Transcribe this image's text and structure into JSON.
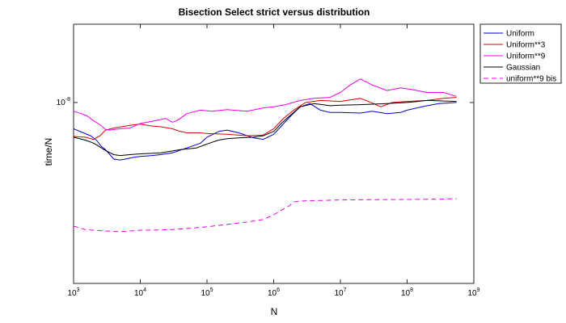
{
  "chart_data": {
    "type": "line",
    "title": "Bisection Select strict versus distribution",
    "xlabel": "N",
    "ylabel": "time/N",
    "xscale": "log",
    "yscale": "log",
    "xlim": [
      1000,
      1000000000
    ],
    "ylim": [
      1.8e-09,
      2.1e-08
    ],
    "grid": false,
    "legend_position": "outside-top-right",
    "x_ticks": [
      {
        "base": "10",
        "exp": "3",
        "value": 1000
      },
      {
        "base": "10",
        "exp": "4",
        "value": 10000
      },
      {
        "base": "10",
        "exp": "5",
        "value": 100000
      },
      {
        "base": "10",
        "exp": "6",
        "value": 1000000
      },
      {
        "base": "10",
        "exp": "7",
        "value": 10000000
      },
      {
        "base": "10",
        "exp": "8",
        "value": 100000000
      },
      {
        "base": "10",
        "exp": "9",
        "value": 1000000000
      }
    ],
    "y_ticks": [
      {
        "base": "10",
        "exp": "-8",
        "value": 1e-08
      }
    ],
    "series": [
      {
        "name": "Uniform",
        "color": "#0000cc",
        "dash": "solid",
        "points": [
          [
            1000,
            7.8e-09
          ],
          [
            1400,
            7.5e-09
          ],
          [
            1800,
            7.3e-09
          ],
          [
            2200,
            7e-09
          ],
          [
            2600,
            6.6e-09
          ],
          [
            3000,
            6.4e-09
          ],
          [
            3500,
            6.1e-09
          ],
          [
            4000,
            5.85e-09
          ],
          [
            5000,
            5.8e-09
          ],
          [
            6000,
            5.85e-09
          ],
          [
            8000,
            5.95e-09
          ],
          [
            10000,
            6e-09
          ],
          [
            15000,
            6.05e-09
          ],
          [
            20000,
            6.1e-09
          ],
          [
            30000,
            6.2e-09
          ],
          [
            50000,
            6.5e-09
          ],
          [
            80000,
            6.8e-09
          ],
          [
            100000,
            7.2e-09
          ],
          [
            150000,
            7.6e-09
          ],
          [
            200000,
            7.7e-09
          ],
          [
            300000,
            7.5e-09
          ],
          [
            500000,
            7.15e-09
          ],
          [
            700000,
            7.05e-09
          ],
          [
            1000000,
            7.4e-09
          ],
          [
            1300000,
            8e-09
          ],
          [
            1800000,
            8.8e-09
          ],
          [
            2500000,
            9.6e-09
          ],
          [
            3500000,
            9.9e-09
          ],
          [
            5000000,
            9.3e-09
          ],
          [
            7000000,
            9.1e-09
          ],
          [
            10000000,
            9.1e-09
          ],
          [
            20000000,
            9.05e-09
          ],
          [
            30000000,
            9.2e-09
          ],
          [
            50000000,
            9e-09
          ],
          [
            80000000,
            9.1e-09
          ],
          [
            100000000,
            9.3e-09
          ],
          [
            200000000,
            9.7e-09
          ],
          [
            300000000,
            9.9e-09
          ],
          [
            550000000,
            1e-08
          ]
        ]
      },
      {
        "name": "Uniform**3",
        "color": "#dd0000",
        "dash": "solid",
        "points": [
          [
            1000,
            7.25e-09
          ],
          [
            1500,
            7.2e-09
          ],
          [
            2000,
            7.05e-09
          ],
          [
            2500,
            7.3e-09
          ],
          [
            3000,
            7.7e-09
          ],
          [
            4000,
            7.85e-09
          ],
          [
            6000,
            8e-09
          ],
          [
            8000,
            8.1e-09
          ],
          [
            10000,
            8.15e-09
          ],
          [
            15000,
            8e-09
          ],
          [
            20000,
            7.95e-09
          ],
          [
            30000,
            7.8e-09
          ],
          [
            40000,
            7.6e-09
          ],
          [
            50000,
            7.5e-09
          ],
          [
            80000,
            7.5e-09
          ],
          [
            100000,
            7.45e-09
          ],
          [
            200000,
            7.4e-09
          ],
          [
            400000,
            7.3e-09
          ],
          [
            700000,
            7.35e-09
          ],
          [
            1000000,
            7.8e-09
          ],
          [
            1400000,
            8.6e-09
          ],
          [
            2000000,
            9.3e-09
          ],
          [
            3000000,
            1e-08
          ],
          [
            5000000,
            1.02e-08
          ],
          [
            10000000,
            1.01e-08
          ],
          [
            20000000,
            1.04e-08
          ],
          [
            30000000,
            9.95e-09
          ],
          [
            40000000,
            9.6e-09
          ],
          [
            60000000,
            1e-08
          ],
          [
            100000000,
            1.01e-08
          ],
          [
            200000000,
            1.02e-08
          ],
          [
            350000000,
            1.04e-08
          ],
          [
            550000000,
            1.05e-08
          ]
        ]
      },
      {
        "name": "Uniform**9",
        "color": "#ee00ee",
        "dash": "solid",
        "points": [
          [
            1000,
            9.2e-09
          ],
          [
            1300,
            9e-09
          ],
          [
            1600,
            8.8e-09
          ],
          [
            2000,
            8.4e-09
          ],
          [
            2500,
            8.1e-09
          ],
          [
            3000,
            7.75e-09
          ],
          [
            3500,
            7.7e-09
          ],
          [
            5000,
            7.8e-09
          ],
          [
            7000,
            7.85e-09
          ],
          [
            10000,
            8.2e-09
          ],
          [
            13000,
            8.3e-09
          ],
          [
            16000,
            8.4e-09
          ],
          [
            20000,
            8.5e-09
          ],
          [
            24000,
            8.6e-09
          ],
          [
            30000,
            8.3e-09
          ],
          [
            35000,
            8.4e-09
          ],
          [
            50000,
            9e-09
          ],
          [
            80000,
            9.3e-09
          ],
          [
            120000,
            9.2e-09
          ],
          [
            200000,
            9.35e-09
          ],
          [
            400000,
            9.2e-09
          ],
          [
            700000,
            9.5e-09
          ],
          [
            1000000,
            9.6e-09
          ],
          [
            1500000,
            9.8e-09
          ],
          [
            2500000,
            1.02e-08
          ],
          [
            4000000,
            1.04e-08
          ],
          [
            7000000,
            1.05e-08
          ],
          [
            10000000,
            1.1e-08
          ],
          [
            14000000,
            1.18e-08
          ],
          [
            20000000,
            1.25e-08
          ],
          [
            30000000,
            1.18e-08
          ],
          [
            50000000,
            1.12e-08
          ],
          [
            80000000,
            1.15e-08
          ],
          [
            120000000,
            1.13e-08
          ],
          [
            200000000,
            1.1e-08
          ],
          [
            350000000,
            1.1e-08
          ],
          [
            550000000,
            1.06e-08
          ]
        ]
      },
      {
        "name": "Gaussian",
        "color": "#000000",
        "dash": "solid",
        "points": [
          [
            1000,
            7.2e-09
          ],
          [
            1500,
            7e-09
          ],
          [
            2000,
            6.8e-09
          ],
          [
            2500,
            6.55e-09
          ],
          [
            3000,
            6.35e-09
          ],
          [
            4000,
            6.1e-09
          ],
          [
            5000,
            6.05e-09
          ],
          [
            7000,
            6.1e-09
          ],
          [
            10000,
            6.15e-09
          ],
          [
            20000,
            6.2e-09
          ],
          [
            40000,
            6.4e-09
          ],
          [
            70000,
            6.5e-09
          ],
          [
            100000,
            6.75e-09
          ],
          [
            150000,
            7e-09
          ],
          [
            200000,
            7.1e-09
          ],
          [
            300000,
            7.15e-09
          ],
          [
            500000,
            7.2e-09
          ],
          [
            700000,
            7.3e-09
          ],
          [
            1000000,
            7.6e-09
          ],
          [
            1300000,
            8.2e-09
          ],
          [
            1800000,
            8.9e-09
          ],
          [
            2500000,
            9.6e-09
          ],
          [
            4000000,
            9.9e-09
          ],
          [
            7000000,
            9.7e-09
          ],
          [
            10000000,
            9.75e-09
          ],
          [
            20000000,
            9.8e-09
          ],
          [
            50000000,
            9.9e-09
          ],
          [
            100000000,
            1e-08
          ],
          [
            200000000,
            1.02e-08
          ],
          [
            550000000,
            1.01e-08
          ]
        ]
      },
      {
        "name": "uniform**9 bis",
        "color": "#ee00ee",
        "dash": "dashed",
        "points": [
          [
            1000,
            3.1e-09
          ],
          [
            1500,
            3e-09
          ],
          [
            2000,
            2.98e-09
          ],
          [
            3000,
            2.96e-09
          ],
          [
            5000,
            2.94e-09
          ],
          [
            7000,
            2.96e-09
          ],
          [
            10000,
            2.98e-09
          ],
          [
            20000,
            2.99e-09
          ],
          [
            30000,
            3e-09
          ],
          [
            50000,
            3.03e-09
          ],
          [
            100000,
            3.08e-09
          ],
          [
            200000,
            3.15e-09
          ],
          [
            400000,
            3.22e-09
          ],
          [
            700000,
            3.3e-09
          ],
          [
            1000000,
            3.45e-09
          ],
          [
            1300000,
            3.6e-09
          ],
          [
            1700000,
            3.75e-09
          ],
          [
            2000000,
            3.9e-09
          ],
          [
            3000000,
            3.94e-09
          ],
          [
            5000000,
            3.95e-09
          ],
          [
            10000000,
            3.97e-09
          ],
          [
            30000000,
            3.98e-09
          ],
          [
            100000000,
            3.99e-09
          ],
          [
            300000000,
            4e-09
          ],
          [
            550000000,
            4.02e-09
          ]
        ]
      }
    ]
  }
}
